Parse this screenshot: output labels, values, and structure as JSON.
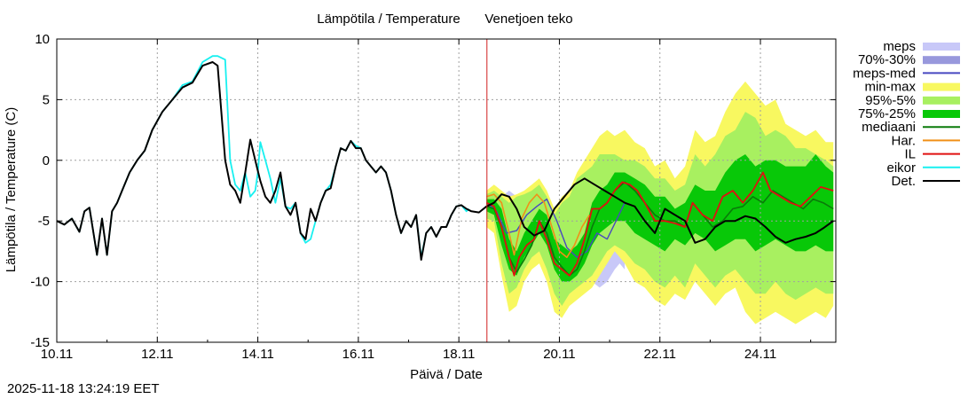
{
  "chart_data": {
    "type": "line",
    "title": "Lämpötila / Temperature",
    "subtitle": "Venetjoen teko",
    "xlabel": "Päivä / Date",
    "ylabel": "Lämpötila / Temperature (C)",
    "ylim": [
      -15,
      10
    ],
    "xlim": [
      "2025-11-10",
      "2025-11-25 14:00"
    ],
    "yticks": [
      -15,
      -10,
      -5,
      0,
      5,
      10
    ],
    "xticks": [
      "10.11",
      "12.11",
      "14.11",
      "16.11",
      "18.11",
      "20.11",
      "22.11",
      "24.11"
    ],
    "grid": true,
    "legend_position": "right",
    "now_marker": "2025-11-18 13:24",
    "timestamp": "2025-11-18 13:24:19 EET",
    "colors": {
      "meps": "#c8c8f8",
      "p70_30": "#9898dc",
      "meps_med": "#4848c0",
      "minmax": "#f8f860",
      "p95_5": "#a8f060",
      "p75_25": "#08c808",
      "mediaani": "#0a7a0a",
      "har": "#f09018",
      "il": "#e01010",
      "eikor": "#18f0f0",
      "det": "#000000",
      "now": "#d02020"
    },
    "legend": [
      {
        "key": "meps",
        "label": "meps",
        "kind": "band"
      },
      {
        "key": "p70_30",
        "label": "70%-30%",
        "kind": "band"
      },
      {
        "key": "meps_med",
        "label": "meps-med",
        "kind": "line"
      },
      {
        "key": "minmax",
        "label": "min-max",
        "kind": "band"
      },
      {
        "key": "p95_5",
        "label": "95%-5%",
        "kind": "band"
      },
      {
        "key": "p75_25",
        "label": "75%-25%",
        "kind": "band"
      },
      {
        "key": "mediaani",
        "label": "mediaani",
        "kind": "line"
      },
      {
        "key": "har",
        "label": "Har.",
        "kind": "line"
      },
      {
        "key": "il",
        "label": "IL",
        "kind": "line"
      },
      {
        "key": "eikor",
        "label": "eikor",
        "kind": "line"
      },
      {
        "key": "det",
        "label": "Det.",
        "kind": "line"
      }
    ],
    "series": {
      "eikor": {
        "x": [
          0,
          0.15,
          0.3,
          0.45,
          0.55,
          0.65,
          0.8,
          0.9,
          1.0,
          1.1,
          1.2,
          1.3,
          1.45,
          1.6,
          1.75,
          1.9,
          2.1,
          2.3,
          2.5,
          2.7,
          2.9,
          3.1,
          3.2,
          3.35,
          3.45,
          3.55,
          3.65,
          3.75,
          3.85,
          3.95,
          4.0,
          4.05,
          4.15,
          4.25,
          4.35,
          4.45,
          4.55,
          4.65,
          4.75,
          4.85,
          4.95,
          5.05,
          5.15,
          5.25,
          5.35,
          5.45,
          5.55,
          5.65,
          5.75,
          5.85,
          5.95,
          6.05,
          6.15,
          6.25,
          6.35,
          6.45,
          6.55,
          6.65,
          6.75,
          6.85,
          6.95,
          7.05,
          7.15,
          7.25,
          7.35,
          7.45,
          7.55,
          7.65,
          7.75,
          7.85,
          7.95,
          8.05,
          8.15,
          8.2
        ],
        "y": [
          -5,
          -5.3,
          -4.8,
          -5.9,
          -4.2,
          -3.9,
          -7.8,
          -4.8,
          -7.8,
          -4.2,
          -3.5,
          -2.5,
          -1,
          0,
          0.8,
          2.5,
          4,
          5,
          6.2,
          6.5,
          8.1,
          8.6,
          8.6,
          8.3,
          0,
          -2,
          -2.5,
          -1,
          -3,
          -2.5,
          -1,
          1.5,
          0,
          -1.5,
          -3.5,
          -1.5,
          -3.8,
          -4,
          -3.5,
          -6,
          -6.8,
          -6.5,
          -5,
          -3.5,
          -2.5,
          -2,
          -0.5,
          1,
          0.8,
          1.6,
          1.2,
          1.0,
          0,
          -0.5,
          -1,
          -0.5,
          -1,
          -2.5,
          -4.5,
          -6,
          -5,
          -5.5,
          -4.5,
          -8,
          -6,
          -5.5,
          -6.3,
          -5.5,
          -5.5,
          -4.5,
          -3.8,
          -3.7,
          -4.2,
          -4.0
        ]
      },
      "det": {
        "x": [
          0,
          0.15,
          0.3,
          0.45,
          0.55,
          0.65,
          0.8,
          0.9,
          1.0,
          1.1,
          1.2,
          1.3,
          1.45,
          1.6,
          1.75,
          1.9,
          2.1,
          2.3,
          2.5,
          2.7,
          2.9,
          3.1,
          3.2,
          3.35,
          3.45,
          3.55,
          3.65,
          3.75,
          3.85,
          3.95,
          4.05,
          4.15,
          4.25,
          4.35,
          4.45,
          4.55,
          4.65,
          4.75,
          4.85,
          4.95,
          5.05,
          5.15,
          5.25,
          5.35,
          5.45,
          5.55,
          5.65,
          5.75,
          5.85,
          5.95,
          6.05,
          6.15,
          6.25,
          6.35,
          6.45,
          6.55,
          6.65,
          6.75,
          6.85,
          6.95,
          7.05,
          7.15,
          7.25,
          7.35,
          7.45,
          7.55,
          7.65,
          7.75,
          7.85,
          7.95,
          8.05,
          8.15,
          8.25,
          8.4,
          8.55,
          8.7,
          8.85,
          9.0,
          9.15,
          9.3,
          9.5,
          9.7,
          9.9,
          10.1,
          10.3,
          10.5,
          10.7,
          10.9,
          11.1,
          11.3,
          11.5,
          11.7,
          11.9,
          12.1,
          12.3,
          12.5,
          12.7,
          12.9,
          13.1,
          13.3,
          13.5,
          13.7,
          13.9,
          14.1,
          14.3,
          14.5,
          14.7,
          14.9,
          15.1,
          15.25,
          15.45
        ],
        "y": [
          -5,
          -5.3,
          -4.8,
          -5.9,
          -4.2,
          -3.9,
          -7.8,
          -4.8,
          -7.8,
          -4.2,
          -3.5,
          -2.5,
          -1,
          0,
          0.8,
          2.5,
          4,
          5,
          6,
          6.4,
          7.8,
          8.1,
          7.8,
          0,
          -2,
          -2.5,
          -3.5,
          -1,
          1.7,
          0,
          -1.7,
          -3,
          -3.5,
          -2.5,
          -1,
          -3.8,
          -4.5,
          -3.5,
          -6,
          -6.5,
          -4,
          -5,
          -3.5,
          -2.5,
          -2.3,
          -0.5,
          1,
          0.8,
          1.6,
          1.0,
          1.0,
          0,
          -0.5,
          -1,
          -0.5,
          -1,
          -2.5,
          -4.5,
          -6,
          -5,
          -5.5,
          -4.5,
          -8.2,
          -6,
          -5.5,
          -6.3,
          -5.5,
          -5.5,
          -4.5,
          -3.8,
          -3.7,
          -4.0,
          -4.2,
          -4.3,
          -3.8,
          -3.5,
          -2.8,
          -3.0,
          -4.0,
          -5.5,
          -6.2,
          -5.8,
          -4.0,
          -3.0,
          -2.0,
          -1.5,
          -2.0,
          -2.5,
          -3.0,
          -3.5,
          -3.8,
          -5.0,
          -6.0,
          -4.0,
          -4.5,
          -5.0,
          -6.8,
          -6.5,
          -5.5,
          -5.0,
          -5.0,
          -4.6,
          -4.8,
          -5.5,
          -6.3,
          -6.8,
          -6.5,
          -6.3,
          -6.0,
          -5.6,
          -5.0
        ]
      },
      "meps_med": {
        "x": [
          8.55,
          8.75,
          8.95,
          9.15,
          9.35,
          9.55,
          9.75,
          9.95,
          10.15,
          10.35,
          10.55,
          10.75,
          10.95,
          11.15,
          11.3
        ],
        "y": [
          -3.5,
          -4.2,
          -6.0,
          -5.8,
          -4.5,
          -3.8,
          -3.2,
          -5.0,
          -7.2,
          -8.0,
          -7.5,
          -6.0,
          -6.5,
          -4.8,
          -3.5
        ]
      },
      "har": {
        "x": [
          8.55,
          8.7,
          8.85,
          9.0,
          9.1,
          9.25,
          9.4,
          9.55,
          9.7,
          9.85,
          10.0,
          10.15,
          10.3,
          10.45,
          10.6
        ],
        "y": [
          -3.0,
          -2.8,
          -3.5,
          -6.0,
          -7.8,
          -4.8,
          -3.5,
          -2.8,
          -3.5,
          -5.5,
          -7.5,
          -8.0,
          -7.0,
          -5.5,
          -4.5
        ]
      },
      "il": {
        "x": [
          8.55,
          8.7,
          8.85,
          9.0,
          9.1,
          9.2,
          9.35,
          9.5,
          9.6,
          9.75,
          9.9,
          10.05,
          10.2,
          10.35,
          10.5,
          10.65,
          10.8,
          10.95,
          11.1,
          11.25,
          11.4,
          11.55,
          11.7,
          11.9,
          12.1,
          12.3,
          12.5,
          12.65,
          12.85,
          13.05,
          13.25,
          13.45,
          13.65,
          13.85,
          14.05,
          14.2,
          14.4,
          14.6,
          14.8,
          15.0,
          15.2,
          15.45
        ],
        "y": [
          -3.5,
          -3.8,
          -5.5,
          -8.0,
          -9.5,
          -8.0,
          -7.0,
          -6.5,
          -5.0,
          -6.5,
          -8.5,
          -9.0,
          -9.5,
          -8.5,
          -6.5,
          -4.0,
          -4.0,
          -3.5,
          -2.5,
          -1.8,
          -2.0,
          -2.5,
          -3.5,
          -5.0,
          -5.0,
          -5.2,
          -5.5,
          -3.5,
          -4.5,
          -5.0,
          -3.0,
          -2.5,
          -3.5,
          -2.5,
          -1.0,
          -2.5,
          -3.0,
          -3.5,
          -3.8,
          -3.0,
          -2.2,
          -2.5
        ]
      },
      "mediaani": {
        "x": [
          8.55,
          8.7,
          8.85,
          9.0,
          9.15,
          9.3,
          9.45,
          9.6,
          9.75,
          9.9,
          10.05,
          10.2,
          10.35,
          10.5,
          10.65,
          10.8,
          10.95,
          11.1,
          11.3,
          11.5,
          11.7,
          11.9,
          12.1,
          12.3,
          12.5,
          12.65,
          12.85,
          13.05,
          13.25,
          13.45,
          13.65,
          13.85,
          14.05,
          14.25,
          14.45,
          14.65,
          14.85,
          15.05,
          15.25,
          15.45
        ],
        "y": [
          -3.8,
          -4.0,
          -5.5,
          -8.0,
          -9.2,
          -8.2,
          -7.0,
          -5.0,
          -6.0,
          -8.0,
          -8.8,
          -9.5,
          -9.0,
          -7.5,
          -5.5,
          -4.0,
          -3.5,
          -2.5,
          -1.8,
          -2.5,
          -3.5,
          -4.5,
          -5.0,
          -5.0,
          -5.5,
          -3.5,
          -4.5,
          -5.5,
          -5.0,
          -4.0,
          -3.8,
          -3.0,
          -3.5,
          -2.5,
          -3.0,
          -3.5,
          -4.0,
          -3.2,
          -3.5,
          -4.0
        ]
      }
    },
    "bands": {
      "meps": {
        "x": [
          8.55,
          8.7,
          8.85,
          9.0,
          9.15,
          9.3,
          9.45,
          9.6,
          9.75,
          9.9,
          10.05,
          10.2,
          10.35,
          10.5,
          10.65,
          10.8,
          10.95,
          11.1,
          11.2,
          11.3
        ],
        "lo": [
          -4.5,
          -5.0,
          -7.5,
          -9.0,
          -8.8,
          -7.5,
          -6.5,
          -6.0,
          -6.5,
          -7.5,
          -8.0,
          -8.5,
          -9.0,
          -9.5,
          -10.0,
          -10.5,
          -10.0,
          -9.0,
          -8.5,
          -9.0
        ],
        "hi": [
          -2.5,
          -2.5,
          -3.0,
          -2.5,
          -3.0,
          -3.0,
          -2.5,
          -2.0,
          -3.0,
          -4.0,
          -4.5,
          -3.5,
          -2.5,
          -3.0,
          -2.5,
          -3.0,
          -3.5,
          -3.8,
          -3.5,
          -3.0
        ]
      },
      "p70_30": {
        "x": [
          8.55,
          8.7,
          8.85,
          9.0,
          9.15,
          9.3,
          9.45,
          9.6,
          9.75,
          9.9,
          10.05,
          10.2,
          10.35,
          10.5
        ],
        "lo": [
          -4.0,
          -4.5,
          -6.0,
          -7.5,
          -7.5,
          -6.5,
          -5.5,
          -5.0,
          -5.5,
          -6.5,
          -7.0,
          -7.5,
          -8.0,
          -8.0
        ],
        "hi": [
          -3.0,
          -3.0,
          -3.8,
          -4.0,
          -4.5,
          -4.0,
          -3.5,
          -3.2,
          -4.0,
          -5.0,
          -5.5,
          -5.0,
          -4.5,
          -4.5
        ]
      },
      "minmax": {
        "x": [
          8.55,
          8.7,
          8.85,
          9.0,
          9.15,
          9.3,
          9.45,
          9.6,
          9.75,
          9.9,
          10.05,
          10.2,
          10.35,
          10.5,
          10.65,
          10.8,
          10.95,
          11.1,
          11.3,
          11.5,
          11.7,
          11.9,
          12.1,
          12.3,
          12.5,
          12.7,
          12.9,
          13.1,
          13.3,
          13.5,
          13.7,
          13.9,
          14.1,
          14.3,
          14.5,
          14.7,
          14.9,
          15.1,
          15.3,
          15.45
        ],
        "lo": [
          -5.5,
          -6.0,
          -9.5,
          -12.5,
          -12.0,
          -10.0,
          -9.0,
          -8.5,
          -10.0,
          -12.5,
          -13.0,
          -12.0,
          -11.5,
          -11.0,
          -10.5,
          -9.5,
          -8.5,
          -7.5,
          -8.5,
          -10.0,
          -10.5,
          -11.5,
          -12.0,
          -11.0,
          -11.5,
          -10.0,
          -11.0,
          -12.0,
          -11.0,
          -10.5,
          -12.5,
          -13.5,
          -13.0,
          -12.5,
          -13.0,
          -13.5,
          -13.0,
          -12.5,
          -13.0,
          -12.0
        ],
        "hi": [
          -2.5,
          -2.0,
          -2.5,
          -3.0,
          -2.8,
          -2.5,
          -2.0,
          -1.5,
          -2.5,
          -4.0,
          -3.0,
          -2.5,
          -1.0,
          0.0,
          1.0,
          2.0,
          2.5,
          2.0,
          2.5,
          1.5,
          1.0,
          -0.5,
          0.0,
          -1.5,
          -0.5,
          2.5,
          1.5,
          2.0,
          4.0,
          5.5,
          6.5,
          5.5,
          4.5,
          5.0,
          3.0,
          2.5,
          2.0,
          2.5,
          1.5,
          1.5
        ]
      },
      "p95_5": {
        "x": [
          8.55,
          8.7,
          8.85,
          9.0,
          9.15,
          9.3,
          9.45,
          9.6,
          9.75,
          9.9,
          10.05,
          10.2,
          10.35,
          10.5,
          10.65,
          10.8,
          10.95,
          11.1,
          11.3,
          11.5,
          11.7,
          11.9,
          12.1,
          12.3,
          12.5,
          12.7,
          12.9,
          13.1,
          13.3,
          13.5,
          13.7,
          13.9,
          14.1,
          14.3,
          14.5,
          14.7,
          14.9,
          15.1,
          15.3,
          15.45
        ],
        "lo": [
          -4.8,
          -5.0,
          -8.5,
          -11.0,
          -10.5,
          -9.0,
          -8.0,
          -7.5,
          -9.0,
          -11.0,
          -12.0,
          -11.0,
          -10.5,
          -10.0,
          -9.5,
          -8.5,
          -7.5,
          -7.0,
          -7.5,
          -8.5,
          -9.0,
          -10.0,
          -10.5,
          -9.5,
          -10.5,
          -8.5,
          -9.5,
          -10.5,
          -9.5,
          -9.0,
          -10.0,
          -11.0,
          -11.0,
          -10.0,
          -11.0,
          -11.5,
          -11.0,
          -10.5,
          -11.0,
          -11.0
        ],
        "hi": [
          -2.8,
          -2.5,
          -3.0,
          -3.5,
          -3.0,
          -2.8,
          -2.5,
          -2.0,
          -3.0,
          -4.5,
          -3.5,
          -3.0,
          -1.5,
          -1.0,
          -0.5,
          0.5,
          0.5,
          0.5,
          0.0,
          0.0,
          -0.5,
          -1.5,
          -1.5,
          -2.5,
          -2.0,
          0.5,
          -0.5,
          0.5,
          2.0,
          2.5,
          4.0,
          3.5,
          2.0,
          2.5,
          2.0,
          1.0,
          1.0,
          0.5,
          0.0,
          -0.5
        ]
      },
      "p75_25": {
        "x": [
          8.55,
          8.7,
          8.85,
          9.0,
          9.15,
          9.3,
          9.45,
          9.6,
          9.75,
          9.9,
          10.05,
          10.2,
          10.35,
          10.5,
          10.65,
          10.8,
          10.95,
          11.1,
          11.3,
          11.5,
          11.7,
          11.9,
          12.1,
          12.3,
          12.5,
          12.7,
          12.9,
          13.1,
          13.3,
          13.5,
          13.7,
          13.9,
          14.1,
          14.3,
          14.5,
          14.7,
          14.9,
          15.1,
          15.3,
          15.45
        ],
        "lo": [
          -4.2,
          -4.5,
          -7.0,
          -9.0,
          -9.5,
          -8.0,
          -7.0,
          -6.0,
          -7.0,
          -9.0,
          -10.0,
          -10.0,
          -9.5,
          -8.5,
          -7.0,
          -6.0,
          -5.5,
          -5.0,
          -5.0,
          -6.0,
          -6.5,
          -7.0,
          -7.5,
          -6.5,
          -7.0,
          -6.0,
          -6.5,
          -7.5,
          -7.0,
          -6.5,
          -6.5,
          -7.5,
          -7.0,
          -6.5,
          -7.0,
          -7.5,
          -7.5,
          -7.0,
          -7.5,
          -7.5
        ],
        "hi": [
          -3.2,
          -3.2,
          -4.0,
          -6.5,
          -7.5,
          -6.0,
          -5.0,
          -4.0,
          -4.5,
          -6.5,
          -7.0,
          -7.5,
          -7.0,
          -6.0,
          -3.5,
          -2.5,
          -2.0,
          -1.0,
          -1.0,
          -1.5,
          -2.0,
          -3.0,
          -3.0,
          -4.0,
          -3.5,
          -2.0,
          -2.5,
          -2.5,
          -1.0,
          0.0,
          0.5,
          -0.5,
          0.0,
          0.0,
          -0.5,
          -0.5,
          -0.5,
          0.5,
          -0.5,
          -1.0
        ]
      }
    }
  }
}
